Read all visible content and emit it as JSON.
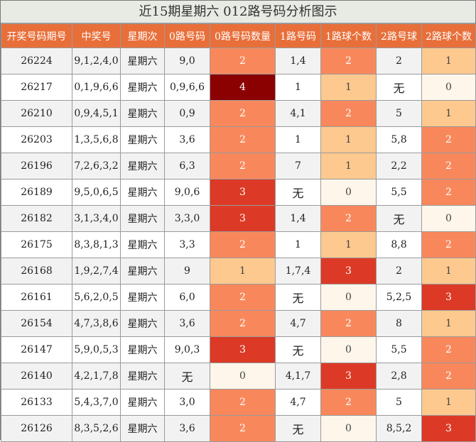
{
  "title": "近15期星期六 012路号码分析图示",
  "headers": [
    "开奖号码期号",
    "中奖号",
    "星期次",
    "0路号码",
    "0路号码数量",
    "1路号码",
    "1路球个数",
    "2路号球",
    "2路球个数"
  ],
  "colors": {
    "header_bg": "#e86f3a",
    "count_0": "#fef6ea",
    "count_1": "#fdc98f",
    "count_2": "#f8885c",
    "count_3": "#dc3a26",
    "count_4": "#8b0000"
  },
  "rows": [
    {
      "issue": "26224",
      "numbers": "9,1,2,4,0",
      "weekday": "星期六",
      "r0": "9,0",
      "c0": "2",
      "r1": "1,4",
      "c1": "2",
      "r2": "2",
      "c2": "1"
    },
    {
      "issue": "26217",
      "numbers": "0,1,9,6,6",
      "weekday": "星期六",
      "r0": "0,9,6,6",
      "c0": "4",
      "r1": "1",
      "c1": "1",
      "r2": "无",
      "c2": "0"
    },
    {
      "issue": "26210",
      "numbers": "0,9,4,5,1",
      "weekday": "星期六",
      "r0": "0,9",
      "c0": "2",
      "r1": "4,1",
      "c1": "2",
      "r2": "5",
      "c2": "1"
    },
    {
      "issue": "26203",
      "numbers": "1,3,5,6,8",
      "weekday": "星期六",
      "r0": "3,6",
      "c0": "2",
      "r1": "1",
      "c1": "1",
      "r2": "5,8",
      "c2": "2"
    },
    {
      "issue": "26196",
      "numbers": "7,2,6,3,2",
      "weekday": "星期六",
      "r0": "6,3",
      "c0": "2",
      "r1": "7",
      "c1": "1",
      "r2": "2,2",
      "c2": "2"
    },
    {
      "issue": "26189",
      "numbers": "9,5,0,6,5",
      "weekday": "星期六",
      "r0": "9,0,6",
      "c0": "3",
      "r1": "无",
      "c1": "0",
      "r2": "5,5",
      "c2": "2"
    },
    {
      "issue": "26182",
      "numbers": "3,1,3,4,0",
      "weekday": "星期六",
      "r0": "3,3,0",
      "c0": "3",
      "r1": "1,4",
      "c1": "2",
      "r2": "无",
      "c2": "0"
    },
    {
      "issue": "26175",
      "numbers": "8,3,8,1,3",
      "weekday": "星期六",
      "r0": "3,3",
      "c0": "2",
      "r1": "1",
      "c1": "1",
      "r2": "8,8",
      "c2": "2"
    },
    {
      "issue": "26168",
      "numbers": "1,9,2,7,4",
      "weekday": "星期六",
      "r0": "9",
      "c0": "1",
      "r1": "1,7,4",
      "c1": "3",
      "r2": "2",
      "c2": "1"
    },
    {
      "issue": "26161",
      "numbers": "5,6,2,0,5",
      "weekday": "星期六",
      "r0": "6,0",
      "c0": "2",
      "r1": "无",
      "c1": "0",
      "r2": "5,2,5",
      "c2": "3"
    },
    {
      "issue": "26154",
      "numbers": "4,7,3,8,6",
      "weekday": "星期六",
      "r0": "3,6",
      "c0": "2",
      "r1": "4,7",
      "c1": "2",
      "r2": "8",
      "c2": "1"
    },
    {
      "issue": "26147",
      "numbers": "5,9,0,5,3",
      "weekday": "星期六",
      "r0": "9,0,3",
      "c0": "3",
      "r1": "无",
      "c1": "0",
      "r2": "5,5",
      "c2": "2"
    },
    {
      "issue": "26140",
      "numbers": "4,2,1,7,8",
      "weekday": "星期六",
      "r0": "无",
      "c0": "0",
      "r1": "4,1,7",
      "c1": "3",
      "r2": "2,8",
      "c2": "2"
    },
    {
      "issue": "26133",
      "numbers": "5,4,3,7,0",
      "weekday": "星期六",
      "r0": "3,0",
      "c0": "2",
      "r1": "4,7",
      "c1": "2",
      "r2": "5",
      "c2": "1"
    },
    {
      "issue": "26126",
      "numbers": "8,3,5,2,6",
      "weekday": "星期六",
      "r0": "3,6",
      "c0": "2",
      "r1": "无",
      "c1": "0",
      "r2": "8,5,2",
      "c2": "3"
    }
  ]
}
